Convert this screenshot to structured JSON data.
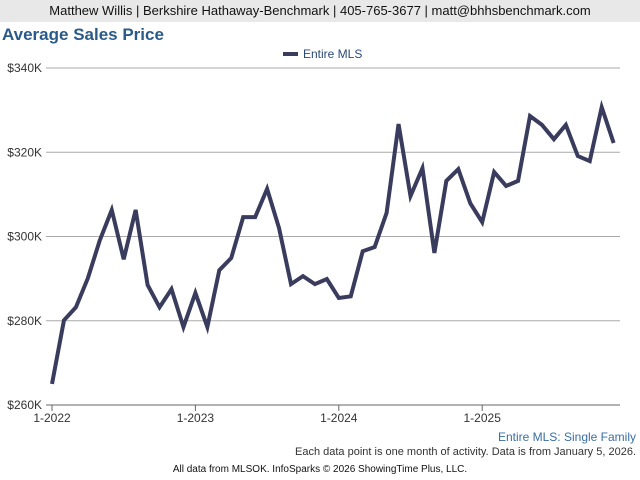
{
  "header": {
    "contact": "Matthew Willis | Berkshire Hathaway-Benchmark | 405-765-3677 | matt@bhhsbenchmark.com"
  },
  "footer": {
    "segment": "Entire MLS: Single Family",
    "note": "Each data point is one month of activity. Data is from January 5, 2026.",
    "credits": "All data from MLSOK. InfoSparks © 2026 ShowingTime Plus, LLC."
  },
  "chart_data": {
    "type": "line",
    "title": "Average Sales Price",
    "xlabel": "",
    "ylabel": "",
    "ylim": [
      260000,
      340000
    ],
    "y_ticks": [
      260000,
      280000,
      300000,
      320000,
      340000
    ],
    "y_tick_labels": [
      "$260K",
      "$280K",
      "$300K",
      "$320K",
      "$340K"
    ],
    "x_tick_labels": [
      "1-2022",
      "1-2023",
      "1-2024",
      "1-2025"
    ],
    "grid": true,
    "legend": "top-center",
    "line_color": "#3a3c5e",
    "x_start": "2022-01",
    "x_end": "2025-12",
    "series": [
      {
        "name": "Entire MLS",
        "values": [
          265000,
          280100,
          283200,
          290100,
          299100,
          306300,
          294600,
          306300,
          288500,
          283200,
          287500,
          278500,
          286600,
          278500,
          292000,
          294900,
          304600,
          304600,
          311300,
          302000,
          288700,
          290600,
          288700,
          289900,
          285400,
          285800,
          296500,
          297500,
          305600,
          326700,
          309600,
          316200,
          296100,
          313200,
          316000,
          307900,
          303400,
          315300,
          312000,
          313200,
          328600,
          326500,
          323100,
          326500,
          319100,
          317900,
          330700,
          322200
        ]
      }
    ]
  }
}
